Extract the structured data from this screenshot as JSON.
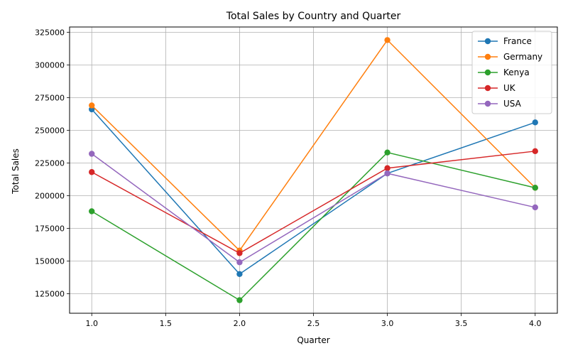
{
  "chart_data": {
    "type": "line",
    "title": "Total Sales by Country and Quarter",
    "xlabel": "Quarter",
    "ylabel": "Total Sales",
    "x": [
      1,
      2,
      3,
      4
    ],
    "xlim": [
      0.85,
      4.15
    ],
    "ylim": [
      110000,
      329000
    ],
    "xticks": [
      1.0,
      1.5,
      2.0,
      2.5,
      3.0,
      3.5,
      4.0
    ],
    "xtick_labels": [
      "1.0",
      "1.5",
      "2.0",
      "2.5",
      "3.0",
      "3.5",
      "4.0"
    ],
    "yticks": [
      125000,
      150000,
      175000,
      200000,
      225000,
      250000,
      275000,
      300000,
      325000
    ],
    "ytick_labels": [
      "125000",
      "150000",
      "175000",
      "200000",
      "225000",
      "250000",
      "275000",
      "300000",
      "325000"
    ],
    "grid": true,
    "legend_position": "top-right",
    "series": [
      {
        "name": "France",
        "color": "#1f77b4",
        "values": [
          266000,
          140000,
          217000,
          256000
        ]
      },
      {
        "name": "Germany",
        "color": "#ff7f0e",
        "values": [
          269000,
          158000,
          319000,
          206000
        ]
      },
      {
        "name": "Kenya",
        "color": "#2ca02c",
        "values": [
          188000,
          120000,
          233000,
          206000
        ]
      },
      {
        "name": "UK",
        "color": "#d62728",
        "values": [
          218000,
          156000,
          221000,
          234000
        ]
      },
      {
        "name": "USA",
        "color": "#9467bd",
        "values": [
          232000,
          149000,
          217000,
          191000
        ]
      }
    ]
  }
}
